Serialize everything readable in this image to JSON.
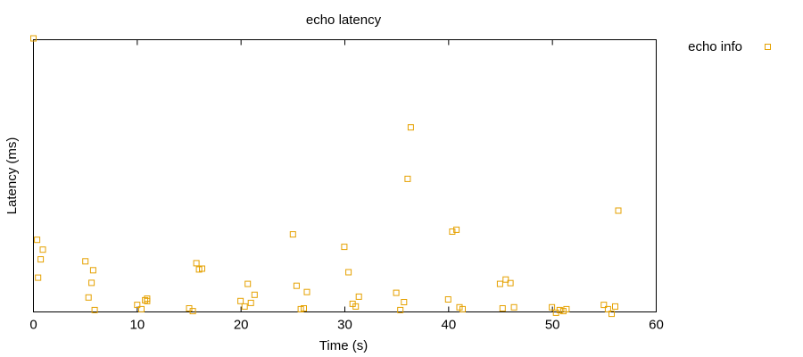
{
  "chart_data": {
    "type": "scatter",
    "title": "echo latency",
    "xlabel": "Time (s)",
    "ylabel": "Latency (ms)",
    "xlim": [
      0,
      60
    ],
    "ylim": [
      0,
      100
    ],
    "xticks": [
      0,
      10,
      20,
      30,
      40,
      50,
      60
    ],
    "yticks": [],
    "grid": false,
    "legend_position": "top-right, outside plot",
    "marker": "open-square",
    "series": [
      {
        "name": "echo info",
        "color": "#e5a100",
        "points": [
          [
            0.0,
            100.5
          ],
          [
            0.35,
            26.5
          ],
          [
            0.9,
            22.9
          ],
          [
            0.7,
            19.3
          ],
          [
            0.45,
            12.6
          ],
          [
            5.0,
            18.6
          ],
          [
            5.75,
            15.3
          ],
          [
            5.6,
            10.7
          ],
          [
            5.3,
            5.3
          ],
          [
            5.9,
            0.7
          ],
          [
            10.0,
            2.6
          ],
          [
            10.4,
            1.0
          ],
          [
            10.75,
            4.3
          ],
          [
            10.95,
            4.9
          ],
          [
            10.95,
            4.0
          ],
          [
            15.0,
            1.3
          ],
          [
            15.35,
            0.3
          ],
          [
            15.7,
            17.9
          ],
          [
            15.95,
            15.6
          ],
          [
            16.25,
            15.9
          ],
          [
            19.95,
            4.0
          ],
          [
            20.35,
            2.0
          ],
          [
            20.65,
            10.3
          ],
          [
            20.95,
            3.3
          ],
          [
            21.3,
            6.3
          ],
          [
            25.0,
            28.5
          ],
          [
            25.35,
            9.6
          ],
          [
            25.75,
            1.0
          ],
          [
            26.05,
            1.3
          ],
          [
            26.35,
            7.3
          ],
          [
            29.95,
            23.9
          ],
          [
            30.35,
            14.6
          ],
          [
            30.75,
            3.0
          ],
          [
            31.05,
            2.0
          ],
          [
            31.35,
            5.6
          ],
          [
            34.95,
            7.0
          ],
          [
            35.35,
            0.7
          ],
          [
            35.7,
            3.6
          ],
          [
            36.05,
            48.9
          ],
          [
            36.35,
            67.8
          ],
          [
            39.95,
            4.6
          ],
          [
            40.35,
            29.5
          ],
          [
            40.75,
            30.2
          ],
          [
            41.05,
            1.7
          ],
          [
            41.35,
            1.0
          ],
          [
            44.95,
            10.3
          ],
          [
            45.5,
            11.9
          ],
          [
            45.95,
            10.6
          ],
          [
            46.3,
            1.7
          ],
          [
            45.2,
            1.3
          ],
          [
            49.95,
            1.7
          ],
          [
            50.35,
            -0.3
          ],
          [
            50.7,
            0.7
          ],
          [
            51.05,
            0.3
          ],
          [
            51.35,
            1.0
          ],
          [
            54.95,
            2.6
          ],
          [
            55.35,
            1.0
          ],
          [
            55.7,
            -0.7
          ],
          [
            56.05,
            2.0
          ],
          [
            56.35,
            37.2
          ]
        ]
      }
    ]
  }
}
